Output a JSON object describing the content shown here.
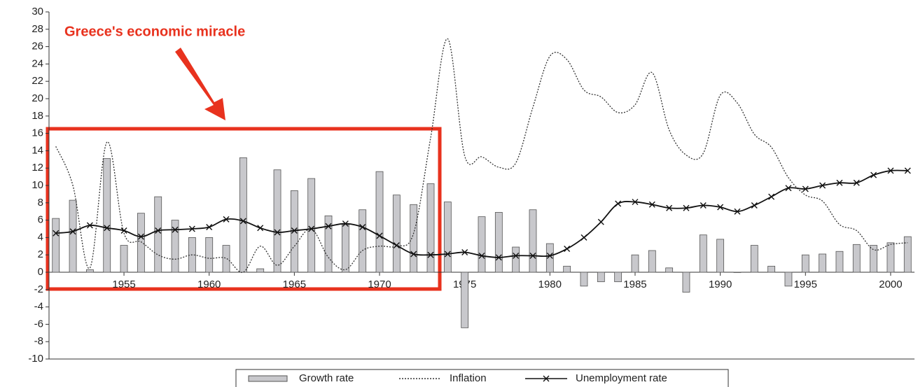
{
  "chart_data": {
    "type": "combo",
    "annotation": "Greece's economic miracle",
    "x": [
      1951,
      1952,
      1953,
      1954,
      1955,
      1956,
      1957,
      1958,
      1959,
      1960,
      1961,
      1962,
      1963,
      1964,
      1965,
      1966,
      1967,
      1968,
      1969,
      1970,
      1971,
      1972,
      1973,
      1974,
      1975,
      1976,
      1977,
      1978,
      1979,
      1980,
      1981,
      1982,
      1983,
      1984,
      1985,
      1986,
      1987,
      1988,
      1989,
      1990,
      1991,
      1992,
      1993,
      1994,
      1995,
      1996,
      1997,
      1998,
      1999,
      2000,
      2001
    ],
    "xlim": [
      1950.6,
      2001.4
    ],
    "xticks": [
      1955,
      1960,
      1965,
      1970,
      1975,
      1980,
      1985,
      1990,
      1995,
      2000
    ],
    "ylim": [
      -10,
      30
    ],
    "yticks": [
      -10,
      -8,
      -6,
      -4,
      -2,
      0,
      2,
      4,
      6,
      8,
      10,
      12,
      14,
      16,
      18,
      20,
      22,
      24,
      26,
      28,
      30
    ],
    "series": [
      {
        "name": "Growth rate",
        "kind": "bar",
        "color": "#c8c8cc",
        "values": [
          6.2,
          8.3,
          0.3,
          13.1,
          3.1,
          6.8,
          8.7,
          6.0,
          4.0,
          4.0,
          3.1,
          13.2,
          0.4,
          11.8,
          9.4,
          10.8,
          6.5,
          5.5,
          7.2,
          11.6,
          8.9,
          7.8,
          10.2,
          8.1,
          -6.4,
          6.4,
          6.9,
          2.9,
          7.2,
          3.3,
          0.7,
          -1.6,
          -1.1,
          -1.1,
          2.0,
          2.5,
          0.5,
          -2.3,
          4.3,
          3.8,
          0.0,
          3.1,
          0.7,
          -1.6,
          2.0,
          2.1,
          2.4,
          3.2,
          3.1,
          3.4,
          4.1
        ]
      },
      {
        "name": "Inflation",
        "kind": "dotted",
        "color": "#333333",
        "values": [
          14.5,
          10,
          0.5,
          15,
          4.5,
          3.5,
          2.0,
          1.5,
          2.0,
          1.6,
          1.6,
          0,
          3.0,
          0.8,
          3.0,
          5.0,
          1.7,
          0.3,
          2.5,
          3.0,
          3.0,
          4.5,
          15.5,
          26.9,
          13.4,
          13.3,
          12.1,
          12.6,
          19.0,
          24.9,
          24.5,
          21.0,
          20.2,
          18.4,
          19.3,
          23.0,
          16.4,
          13.5,
          13.7,
          20.4,
          19.5,
          15.9,
          14.4,
          10.9,
          8.9,
          8.2,
          5.5,
          4.8,
          2.6,
          3.2,
          3.4
        ]
      },
      {
        "name": "Unemployment rate",
        "kind": "marked",
        "color": "#111111",
        "values": [
          4.5,
          4.7,
          5.4,
          5.1,
          4.8,
          4.1,
          4.8,
          4.9,
          5.0,
          5.2,
          6.1,
          5.9,
          5.1,
          4.6,
          4.8,
          5.0,
          5.3,
          5.6,
          5.2,
          4.2,
          3.1,
          2.1,
          2.0,
          2.1,
          2.3,
          1.9,
          1.7,
          1.9,
          1.9,
          1.9,
          2.7,
          4.0,
          5.8,
          7.9,
          8.1,
          7.8,
          7.4,
          7.4,
          7.7,
          7.5,
          7.0,
          7.7,
          8.7,
          9.7,
          9.6,
          10.0,
          10.3,
          10.3,
          11.2,
          11.7,
          11.7
        ]
      }
    ]
  }
}
